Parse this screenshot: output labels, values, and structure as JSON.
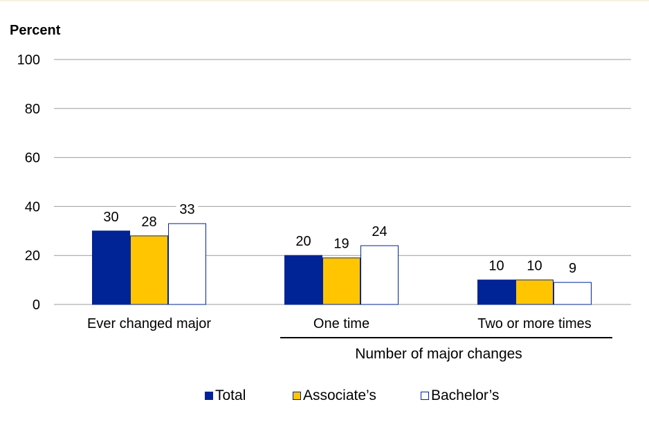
{
  "chart_data": {
    "type": "bar",
    "ylabel": "Percent",
    "ylim": [
      0,
      100
    ],
    "yticks": [
      0,
      20,
      40,
      60,
      80,
      100
    ],
    "grid": true,
    "categories": [
      "Ever changed major",
      "One time",
      "Two or more times"
    ],
    "group_label": "Number of major changes",
    "series": [
      {
        "name": "Total",
        "values": [
          30,
          20,
          10
        ],
        "labels": [
          "30",
          "20",
          "10"
        ]
      },
      {
        "name": "Associate’s",
        "values": [
          28,
          19,
          10
        ],
        "labels": [
          "28",
          "19",
          "10"
        ]
      },
      {
        "name": "Bachelor’s",
        "values": [
          33,
          24,
          9
        ],
        "labels": [
          "33",
          "24",
          "9"
        ]
      }
    ],
    "legend_position": "bottom",
    "colors": {
      "Total": "#002395",
      "Associate's": "#ffc600",
      "Bachelor's": "#ffffff",
      "bar_outline": "#002395",
      "grid": "#9b9b9b"
    }
  }
}
